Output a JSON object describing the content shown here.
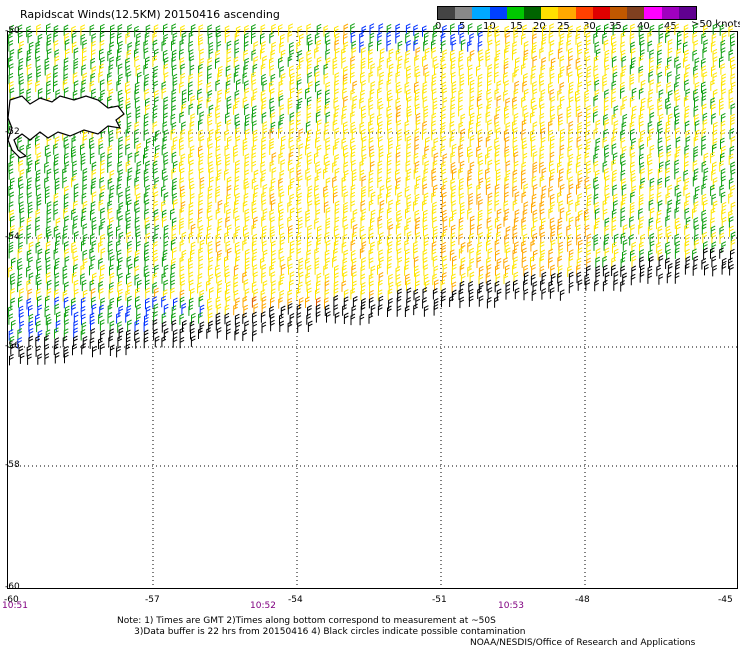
{
  "title": "Rapidscat Winds(12.5KM) 20150416 ascending",
  "legend": {
    "colors": [
      "#444444",
      "#888888",
      "#00a8ff",
      "#0040ff",
      "#00c800",
      "#006400",
      "#ffe000",
      "#ffa800",
      "#ff4000",
      "#e00000",
      "#c05800",
      "#804020",
      "#ff00ff",
      "#a000c0",
      "#600090"
    ],
    "labels": [
      "0",
      "5",
      "10",
      "15",
      "20",
      "25",
      "30",
      "35",
      "40",
      "45",
      ">50"
    ],
    "units": "knots"
  },
  "axes": {
    "lat_labels": [
      "-50",
      "-52",
      "-54",
      "-56",
      "-58",
      "-60"
    ],
    "lon_labels": [
      "-60",
      "-57",
      "-54",
      "-51",
      "-48",
      "-45"
    ]
  },
  "times": [
    "10:51",
    "10:52",
    "10:53"
  ],
  "note_lines": [
    "Note: 1) Times are GMT 2)Times along bottom correspond to measurement at ~50S",
    "      3)Data buffer is 22 hrs from 20150416 4) Black circles indicate possible contamination"
  ],
  "credit": "NOAA/NESDIS/Office of Research and Applications",
  "wind_colors": {
    "black": "#000000",
    "blue": "#0030ff",
    "green": "#10a010",
    "yellow": "#ffe600",
    "orange": "#ffa800",
    "red_orange": "#e05a00"
  }
}
